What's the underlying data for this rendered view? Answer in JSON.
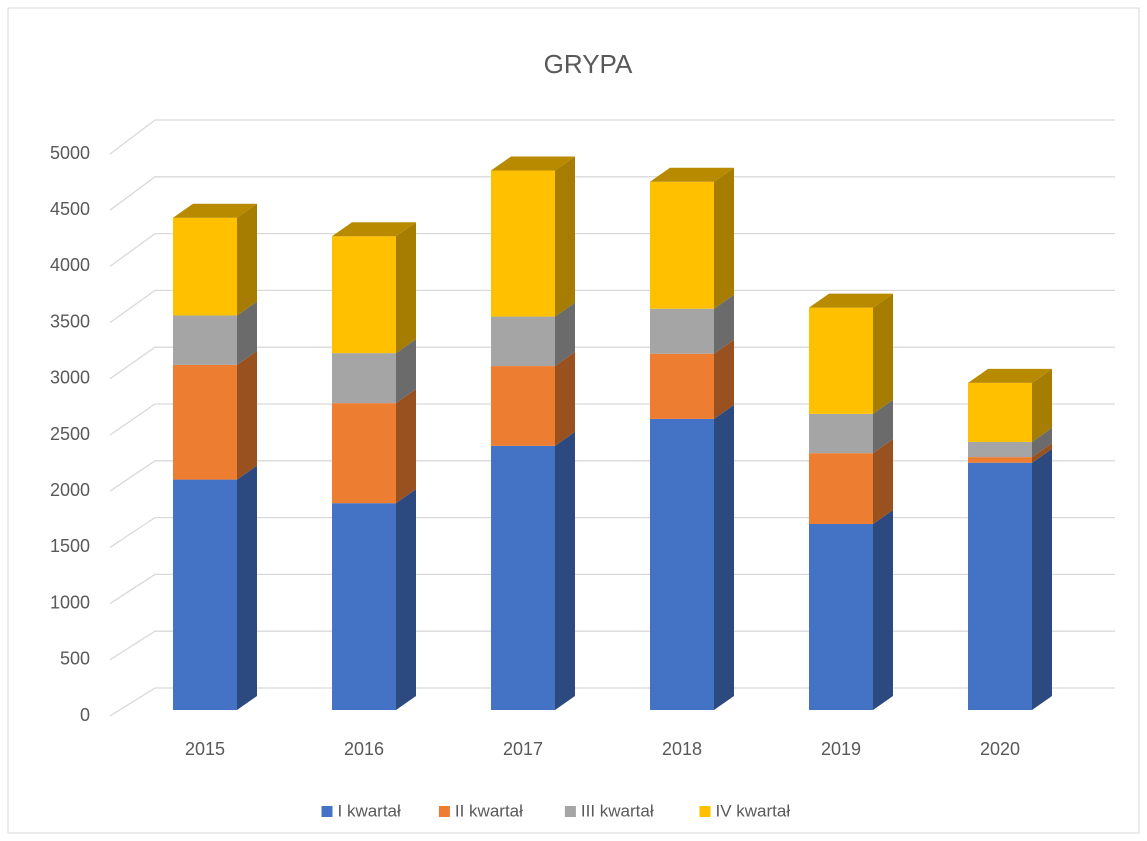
{
  "chart_data": {
    "type": "bar3d-stacked",
    "title": "GRYPA",
    "categories": [
      "2015",
      "2016",
      "2017",
      "2018",
      "2019",
      "2020"
    ],
    "series": [
      {
        "name": "I kwartał",
        "color": "#4472c4",
        "values": [
          2050,
          1840,
          2350,
          2590,
          1655,
          2200
        ]
      },
      {
        "name": "II kwartał",
        "color": "#ed7d31",
        "values": [
          1020,
          890,
          710,
          580,
          630,
          50
        ]
      },
      {
        "name": "III kwartał",
        "color": "#a5a5a5",
        "values": [
          440,
          445,
          440,
          400,
          350,
          135
        ]
      },
      {
        "name": "IV kwartał",
        "color": "#ffc000",
        "values": [
          870,
          1040,
          1300,
          1130,
          945,
          525
        ]
      }
    ],
    "ylim": [
      0,
      5000
    ],
    "yticks": [
      0,
      500,
      1000,
      1500,
      2000,
      2500,
      3000,
      3500,
      4000,
      4500,
      5000
    ],
    "grid": true,
    "legend": "bottom"
  }
}
